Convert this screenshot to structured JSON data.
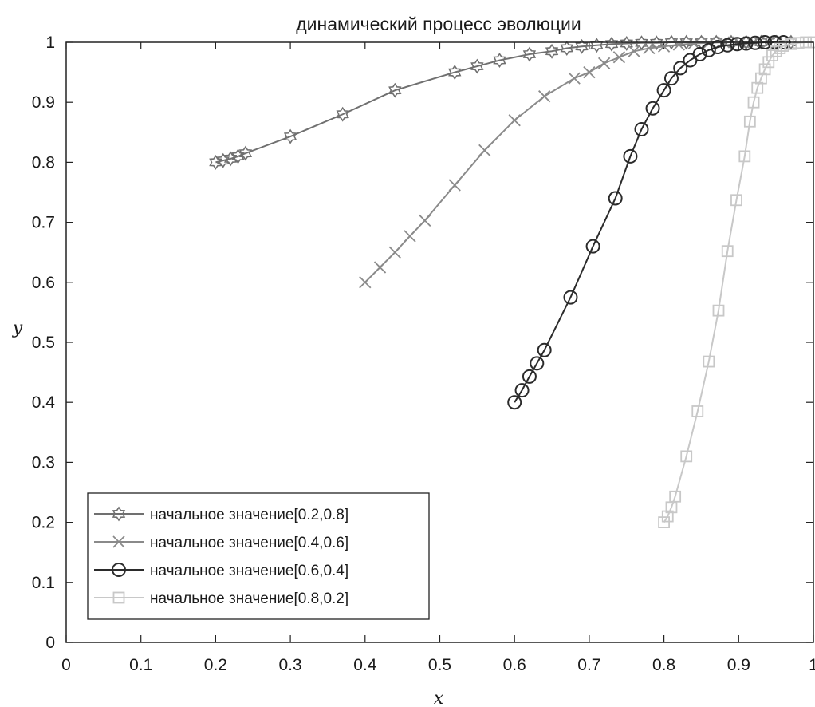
{
  "chart_data": {
    "type": "line",
    "title": "динамический процесс эволюции",
    "xlabel": "x",
    "ylabel": "y",
    "xlim": [
      0,
      1
    ],
    "ylim": [
      0,
      1
    ],
    "xticks": [
      "0",
      "0.1",
      "0.2",
      "0.3",
      "0.4",
      "0.5",
      "0.6",
      "0.7",
      "0.8",
      "0.9",
      "1"
    ],
    "yticks": [
      "0",
      "0.1",
      "0.2",
      "0.3",
      "0.4",
      "0.5",
      "0.6",
      "0.7",
      "0.8",
      "0.9",
      "1"
    ],
    "grid": false,
    "legend_position": "bottom-left",
    "series": [
      {
        "name": "начальное значение[0.2,0.8]",
        "color": "#707070",
        "marker": "hexagram",
        "x": [
          0.2,
          0.21,
          0.22,
          0.23,
          0.24,
          0.3,
          0.37,
          0.44,
          0.52,
          0.55,
          0.58,
          0.62,
          0.65,
          0.67,
          0.69,
          0.71,
          0.73,
          0.75,
          0.77,
          0.79,
          0.81,
          0.83,
          0.85,
          0.87,
          0.89,
          0.91,
          0.93,
          0.95,
          0.97
        ],
        "y": [
          0.8,
          0.803,
          0.806,
          0.81,
          0.815,
          0.843,
          0.88,
          0.92,
          0.95,
          0.96,
          0.97,
          0.98,
          0.985,
          0.99,
          0.993,
          0.995,
          0.997,
          0.998,
          0.999,
          0.999,
          1.0,
          1.0,
          1.0,
          1.0,
          1.0,
          1.0,
          1.0,
          1.0,
          1.0
        ]
      },
      {
        "name": "начальное значение[0.4,0.6]",
        "color": "#8a8a8a",
        "marker": "x",
        "x": [
          0.4,
          0.42,
          0.44,
          0.46,
          0.48,
          0.52,
          0.56,
          0.6,
          0.64,
          0.68,
          0.7,
          0.72,
          0.74,
          0.76,
          0.78,
          0.8,
          0.82,
          0.84,
          0.86,
          0.88,
          0.9,
          0.92,
          0.94
        ],
        "y": [
          0.6,
          0.625,
          0.65,
          0.677,
          0.703,
          0.762,
          0.82,
          0.87,
          0.91,
          0.94,
          0.95,
          0.965,
          0.975,
          0.985,
          0.99,
          0.993,
          0.996,
          0.998,
          0.999,
          1.0,
          1.0,
          1.0,
          1.0
        ]
      },
      {
        "name": "начальное значение[0.6,0.4]",
        "color": "#2b2b2b",
        "marker": "circle",
        "x": [
          0.6,
          0.61,
          0.62,
          0.63,
          0.64,
          0.675,
          0.705,
          0.735,
          0.755,
          0.77,
          0.785,
          0.8,
          0.81,
          0.822,
          0.835,
          0.848,
          0.86,
          0.872,
          0.885,
          0.898,
          0.91,
          0.922,
          0.935,
          0.948,
          0.96
        ],
        "y": [
          0.4,
          0.42,
          0.443,
          0.465,
          0.487,
          0.575,
          0.66,
          0.74,
          0.81,
          0.855,
          0.89,
          0.92,
          0.94,
          0.957,
          0.97,
          0.98,
          0.987,
          0.992,
          0.995,
          0.997,
          0.998,
          0.999,
          1.0,
          1.0,
          1.0
        ]
      },
      {
        "name": "начальное значение[0.8,0.2]",
        "color": "#c8c8c8",
        "marker": "square",
        "x": [
          0.8,
          0.805,
          0.81,
          0.815,
          0.83,
          0.845,
          0.86,
          0.873,
          0.885,
          0.897,
          0.908,
          0.915,
          0.92,
          0.925,
          0.93,
          0.935,
          0.94,
          0.945,
          0.95,
          0.955,
          0.96,
          0.97,
          0.98,
          0.99,
          1.0
        ],
        "y": [
          0.2,
          0.21,
          0.225,
          0.243,
          0.31,
          0.385,
          0.468,
          0.553,
          0.652,
          0.737,
          0.81,
          0.868,
          0.9,
          0.924,
          0.94,
          0.955,
          0.967,
          0.978,
          0.985,
          0.99,
          0.994,
          0.997,
          0.999,
          1.0,
          1.0
        ]
      }
    ]
  }
}
